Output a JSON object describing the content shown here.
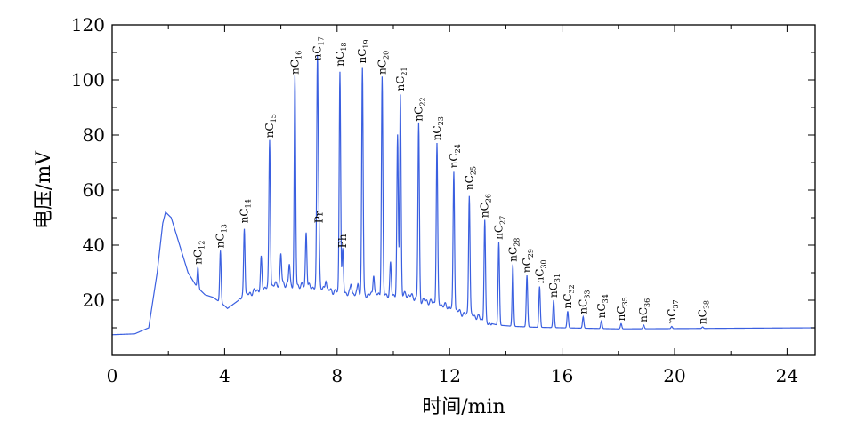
{
  "chart_data": {
    "type": "line",
    "xlabel": "时间/min",
    "ylabel": "电压/mV",
    "xlim": [
      0,
      25
    ],
    "ylim": [
      0,
      120
    ],
    "x_ticks": [
      0,
      4,
      8,
      12,
      16,
      20,
      24
    ],
    "y_ticks": [
      20,
      40,
      60,
      80,
      100,
      120
    ],
    "y_tick_labels": [
      "20",
      "40",
      "60",
      "80",
      "100",
      "120"
    ],
    "x_tick_labels": [
      "0",
      "4",
      "8",
      "12",
      "16",
      "20",
      "24"
    ],
    "grid": false,
    "line_color": "#3a5fe0",
    "baseline": [
      [
        0,
        7.5
      ],
      [
        0.8,
        7.8
      ],
      [
        1.3,
        10
      ],
      [
        1.6,
        30
      ],
      [
        1.8,
        48
      ],
      [
        1.9,
        52
      ],
      [
        2.1,
        50
      ],
      [
        2.4,
        40
      ],
      [
        2.7,
        30
      ],
      [
        3.0,
        25
      ],
      [
        3.3,
        22
      ],
      [
        3.6,
        21
      ],
      [
        4.0,
        18
      ],
      [
        4.1,
        17
      ],
      [
        4.5,
        20
      ],
      [
        5.0,
        23
      ],
      [
        5.5,
        25
      ],
      [
        6.0,
        26
      ],
      [
        7.0,
        25
      ],
      [
        8.0,
        23
      ],
      [
        9.0,
        22
      ],
      [
        10.0,
        22
      ],
      [
        10.5,
        22
      ],
      [
        11.0,
        20
      ],
      [
        11.5,
        19
      ],
      [
        12.0,
        17.5
      ],
      [
        12.5,
        15
      ],
      [
        13.0,
        14
      ],
      [
        13.3,
        12
      ],
      [
        13.7,
        11
      ],
      [
        14.3,
        10.5
      ],
      [
        15.0,
        10.2
      ],
      [
        16.0,
        10
      ],
      [
        17.0,
        9.8
      ],
      [
        18.0,
        9.6
      ],
      [
        20.0,
        9.7
      ],
      [
        25.0,
        10
      ]
    ],
    "peaks": [
      {
        "label": "nC",
        "sub": "12",
        "x": 3.05,
        "y": 32
      },
      {
        "label": "nC",
        "sub": "13",
        "x": 3.85,
        "y": 38
      },
      {
        "label": "nC",
        "sub": "14",
        "x": 4.7,
        "y": 47
      },
      {
        "label": "nC",
        "sub": "15",
        "x": 5.6,
        "y": 78
      },
      {
        "label": "nC",
        "sub": "16",
        "x": 6.5,
        "y": 101
      },
      {
        "label": "nC",
        "sub": "17",
        "x": 7.3,
        "y": 106
      },
      {
        "label": "nC",
        "sub": "18",
        "x": 8.1,
        "y": 104
      },
      {
        "label": "nC",
        "sub": "19",
        "x": 8.9,
        "y": 105
      },
      {
        "label": "nC",
        "sub": "20",
        "x": 9.6,
        "y": 101
      },
      {
        "label": "nC",
        "sub": "21",
        "x": 10.25,
        "y": 95
      },
      {
        "label": "nC",
        "sub": "22",
        "x": 10.9,
        "y": 84
      },
      {
        "label": "nC",
        "sub": "23",
        "x": 11.55,
        "y": 77
      },
      {
        "label": "nC",
        "sub": "24",
        "x": 12.15,
        "y": 67
      },
      {
        "label": "nC",
        "sub": "25",
        "x": 12.7,
        "y": 59
      },
      {
        "label": "nC",
        "sub": "26",
        "x": 13.25,
        "y": 49
      },
      {
        "label": "nC",
        "sub": "27",
        "x": 13.75,
        "y": 41
      },
      {
        "label": "nC",
        "sub": "28",
        "x": 14.25,
        "y": 33
      },
      {
        "label": "nC",
        "sub": "29",
        "x": 14.75,
        "y": 29
      },
      {
        "label": "nC",
        "sub": "30",
        "x": 15.2,
        "y": 25
      },
      {
        "label": "nC",
        "sub": "31",
        "x": 15.7,
        "y": 20
      },
      {
        "label": "nC",
        "sub": "32",
        "x": 16.2,
        "y": 16
      },
      {
        "label": "nC",
        "sub": "33",
        "x": 16.75,
        "y": 14
      },
      {
        "label": "nC",
        "sub": "34",
        "x": 17.4,
        "y": 12.5
      },
      {
        "label": "nC",
        "sub": "35",
        "x": 18.1,
        "y": 11.5
      },
      {
        "label": "nC",
        "sub": "36",
        "x": 18.9,
        "y": 11
      },
      {
        "label": "nC",
        "sub": "37",
        "x": 19.9,
        "y": 10.5
      },
      {
        "label": "nC",
        "sub": "38",
        "x": 21.0,
        "y": 10.3
      },
      {
        "label": "Pr",
        "sub": "",
        "x": 7.35,
        "y": 47
      },
      {
        "label": "Ph",
        "sub": "",
        "x": 8.2,
        "y": 38
      }
    ],
    "minor_peaks": [
      [
        5.3,
        35
      ],
      [
        6.0,
        37
      ],
      [
        6.3,
        33
      ],
      [
        6.9,
        45
      ],
      [
        7.6,
        28
      ],
      [
        8.5,
        26
      ],
      [
        10.15,
        79
      ],
      [
        9.9,
        33
      ],
      [
        9.3,
        30
      ],
      [
        8.75,
        26
      ]
    ]
  }
}
